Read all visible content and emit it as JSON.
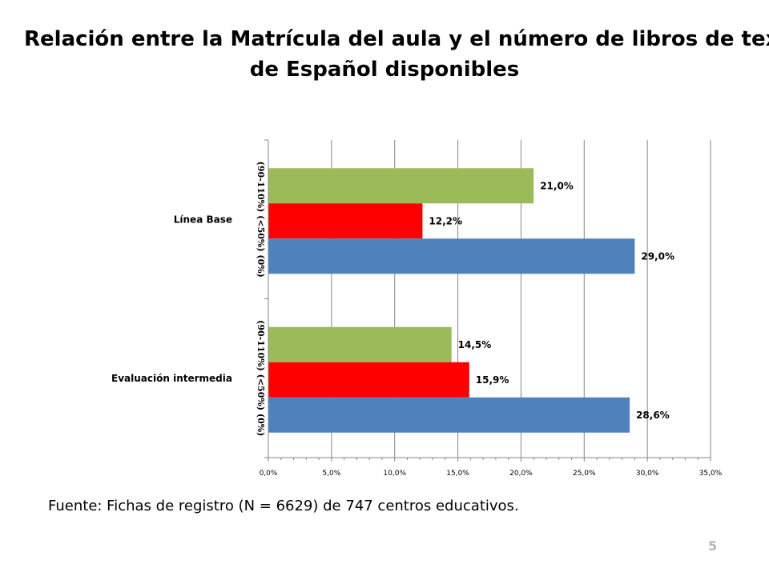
{
  "slide": {
    "title_line1": "Relación entre la Matrícula del aula y el número de libros de texto",
    "title_line2": "de Español disponibles",
    "source": "Fuente: Fichas de registro (N = 6629) de 747 centros educativos.",
    "page_number": "5"
  },
  "chart_data": {
    "type": "bar",
    "orientation": "horizontal",
    "title": "",
    "xlabel": "",
    "ylabel": "",
    "xlim": [
      0,
      35
    ],
    "x_ticks": [
      "0,0%",
      "5,0%",
      "10,0%",
      "15,0%",
      "20,0%",
      "25,0%",
      "30,0%",
      "35,0%"
    ],
    "grid": true,
    "categories": [
      "Línea Base",
      "Evaluación intermedia"
    ],
    "series_labels_text": "(90-110%) (<50%)   (0%)",
    "series": [
      {
        "name": "(90-110%)",
        "color": "#4f81bd",
        "values": [
          29.0,
          28.6
        ],
        "labels": [
          "29,0%",
          "28,6%"
        ]
      },
      {
        "name": "(<50%)",
        "color": "#ff0000",
        "values": [
          12.2,
          15.9
        ],
        "labels": [
          "12,2%",
          "15,9%"
        ]
      },
      {
        "name": "(0%)",
        "color": "#9bbb59",
        "values": [
          21.0,
          14.5
        ],
        "labels": [
          "21,0%",
          "14,5%"
        ]
      }
    ]
  }
}
